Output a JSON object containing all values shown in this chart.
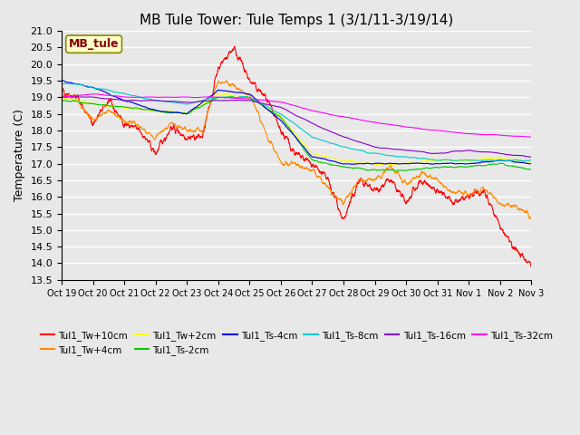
{
  "title": "MB Tule Tower: Tule Temps 1 (3/1/11-3/19/14)",
  "ylabel": "Temperature (C)",
  "ylim": [
    13.5,
    21.0
  ],
  "yticks": [
    13.5,
    14.0,
    14.5,
    15.0,
    15.5,
    16.0,
    16.5,
    17.0,
    17.5,
    18.0,
    18.5,
    19.0,
    19.5,
    20.0,
    20.5,
    21.0
  ],
  "xtick_labels": [
    "Oct 19",
    "Oct 20",
    "Oct 21",
    "Oct 22",
    "Oct 23",
    "Oct 24",
    "Oct 25",
    "Oct 26",
    "Oct 27",
    "Oct 28",
    "Oct 29",
    "Oct 30",
    "Oct 31",
    "Nov 1",
    "Nov 2",
    "Nov 3"
  ],
  "series": [
    {
      "label": "Tul1_Tw+10cm",
      "color": "#FF0000"
    },
    {
      "label": "Tul1_Tw+4cm",
      "color": "#FF8C00"
    },
    {
      "label": "Tul1_Tw+2cm",
      "color": "#FFFF00"
    },
    {
      "label": "Tul1_Ts-2cm",
      "color": "#00CC00"
    },
    {
      "label": "Tul1_Ts-4cm",
      "color": "#0000DD"
    },
    {
      "label": "Tul1_Ts-8cm",
      "color": "#00CCCC"
    },
    {
      "label": "Tul1_Ts-16cm",
      "color": "#8800CC"
    },
    {
      "label": "Tul1_Ts-32cm",
      "color": "#FF00FF"
    }
  ],
  "bg_color": "#E8E8E8",
  "plot_bg_color": "#E8E8E8",
  "grid_color": "#FFFFFF",
  "annotation_box": {
    "text": "MB_tule",
    "facecolor": "#FFFFCC",
    "edgecolor": "#888800",
    "textcolor": "#880000"
  },
  "n_points": 2000
}
